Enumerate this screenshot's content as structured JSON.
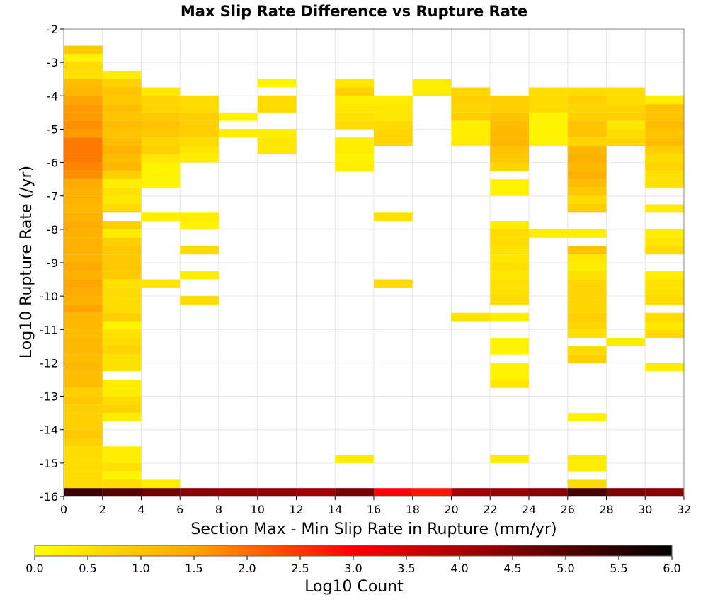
{
  "chart_data": {
    "type": "heatmap",
    "title": "Max Slip Rate Difference vs Rupture Rate",
    "xlabel": "Section Max - Min Slip Rate in Rupture (mm/yr)",
    "ylabel": "Log10 Rupture Rate (/yr)",
    "xlim": [
      0,
      32
    ],
    "ylim": [
      -16,
      -2
    ],
    "x_ticks": [
      "0",
      "2",
      "4",
      "6",
      "8",
      "10",
      "12",
      "14",
      "16",
      "18",
      "20",
      "22",
      "24",
      "26",
      "28",
      "30",
      "32"
    ],
    "y_ticks": [
      "-2",
      "-3",
      "-4",
      "-5",
      "-6",
      "-7",
      "-8",
      "-9",
      "-10",
      "-11",
      "-12",
      "-13",
      "-14",
      "-15",
      "-16"
    ],
    "grid": true,
    "x_bin_width": 2,
    "y_bin_height": 0.25,
    "colorbar": {
      "label": "Log10 Count",
      "min": 0.0,
      "max": 6.0,
      "ticks": [
        "0.0",
        "0.5",
        "1.0",
        "1.5",
        "2.0",
        "2.5",
        "3.0",
        "3.5",
        "4.0",
        "4.5",
        "5.0",
        "5.5",
        "6.0"
      ]
    },
    "cells": [
      [
        0,
        -2.75,
        0.9
      ],
      [
        0,
        -3,
        0.2
      ],
      [
        0,
        -3.25,
        0.6
      ],
      [
        0,
        -3.5,
        0.5
      ],
      [
        0,
        -3.75,
        1.1
      ],
      [
        0,
        -4,
        1.2
      ],
      [
        0,
        -4.25,
        1.5
      ],
      [
        0,
        -4.5,
        1.6
      ],
      [
        0,
        -4.75,
        1.6
      ],
      [
        0,
        -5,
        1.7
      ],
      [
        0,
        -5.25,
        1.6
      ],
      [
        0,
        -5.5,
        1.9
      ],
      [
        0,
        -5.75,
        1.9
      ],
      [
        0,
        -6,
        1.9
      ],
      [
        0,
        -6.25,
        1.8
      ],
      [
        0,
        -6.5,
        1.7
      ],
      [
        0,
        -6.75,
        1.4
      ],
      [
        0,
        -7,
        1.3
      ],
      [
        0,
        -7.25,
        1.3
      ],
      [
        0,
        -7.5,
        1.2
      ],
      [
        0,
        -7.75,
        1.3
      ],
      [
        0,
        -8,
        1.4
      ],
      [
        0,
        -8.25,
        1.3
      ],
      [
        0,
        -8.5,
        1.3
      ],
      [
        0,
        -8.75,
        1.3
      ],
      [
        0,
        -9,
        1.3
      ],
      [
        0,
        -9.25,
        1.4
      ],
      [
        0,
        -9.5,
        1.3
      ],
      [
        0,
        -9.75,
        1.5
      ],
      [
        0,
        -10,
        1.4
      ],
      [
        0,
        -10.25,
        1.3
      ],
      [
        0,
        -10.5,
        1.5
      ],
      [
        0,
        -10.75,
        1.2
      ],
      [
        0,
        -11,
        1.2
      ],
      [
        0,
        -11.25,
        1.1
      ],
      [
        0,
        -11.5,
        1.2
      ],
      [
        0,
        -11.75,
        1.2
      ],
      [
        0,
        -12,
        1.1
      ],
      [
        0,
        -12.25,
        1.2
      ],
      [
        0,
        -12.5,
        1.1
      ],
      [
        0,
        -12.75,
        1.1
      ],
      [
        0,
        -13,
        0.8
      ],
      [
        0,
        -13.25,
        0.9
      ],
      [
        0,
        -13.5,
        0.8
      ],
      [
        0,
        -13.75,
        0.8
      ],
      [
        0,
        -14,
        0.8
      ],
      [
        0,
        -14.25,
        0.9
      ],
      [
        0,
        -14.5,
        0.8
      ],
      [
        0,
        -14.75,
        0.6
      ],
      [
        0,
        -15,
        0.6
      ],
      [
        0,
        -15.25,
        0.6
      ],
      [
        0,
        -15.5,
        0.6
      ],
      [
        0,
        -15.75,
        0.6
      ],
      [
        0,
        -16,
        5.3
      ],
      [
        2,
        -3.5,
        0.3
      ],
      [
        2,
        -3.75,
        0.8
      ],
      [
        2,
        -4,
        1.0
      ],
      [
        2,
        -4.25,
        0.9
      ],
      [
        2,
        -4.5,
        1.1
      ],
      [
        2,
        -4.75,
        1.0
      ],
      [
        2,
        -5,
        1.1
      ],
      [
        2,
        -5.25,
        1.0
      ],
      [
        2,
        -5.5,
        1.1
      ],
      [
        2,
        -5.75,
        1.3
      ],
      [
        2,
        -6,
        1.1
      ],
      [
        2,
        -6.25,
        1.2
      ],
      [
        2,
        -6.5,
        0.8
      ],
      [
        2,
        -6.75,
        0.3
      ],
      [
        2,
        -7,
        0.5
      ],
      [
        2,
        -7.25,
        0.4
      ],
      [
        2,
        -7.5,
        0.6
      ],
      [
        2,
        -8,
        0.8
      ],
      [
        2,
        -8.25,
        0.3
      ],
      [
        2,
        -8.5,
        0.8
      ],
      [
        2,
        -8.75,
        0.9
      ],
      [
        2,
        -9,
        0.9
      ],
      [
        2,
        -9.25,
        0.9
      ],
      [
        2,
        -9.5,
        0.9
      ],
      [
        2,
        -9.75,
        0.5
      ],
      [
        2,
        -10,
        0.6
      ],
      [
        2,
        -10.25,
        0.6
      ],
      [
        2,
        -10.5,
        0.6
      ],
      [
        2,
        -10.75,
        0.8
      ],
      [
        2,
        -11,
        0.2
      ],
      [
        2,
        -11.25,
        0.5
      ],
      [
        2,
        -11.5,
        0.6
      ],
      [
        2,
        -11.75,
        0.7
      ],
      [
        2,
        -12,
        0.5
      ],
      [
        2,
        -12.25,
        0.5
      ],
      [
        2,
        -12.75,
        0.3
      ],
      [
        2,
        -13,
        0.3
      ],
      [
        2,
        -13.25,
        0.6
      ],
      [
        2,
        -13.5,
        0.7
      ],
      [
        2,
        -13.75,
        0.3
      ],
      [
        2,
        -14.75,
        0.3
      ],
      [
        2,
        -15,
        0.3
      ],
      [
        2,
        -15.25,
        0.5
      ],
      [
        2,
        -15.5,
        0.2
      ],
      [
        2,
        -15.75,
        0.6
      ],
      [
        2,
        -16,
        5.0
      ],
      [
        4,
        -4,
        0.4
      ],
      [
        4,
        -4.25,
        0.7
      ],
      [
        4,
        -4.5,
        0.7
      ],
      [
        4,
        -4.75,
        0.9
      ],
      [
        4,
        -5,
        1.0
      ],
      [
        4,
        -5.25,
        0.9
      ],
      [
        4,
        -5.5,
        0.7
      ],
      [
        4,
        -5.75,
        0.8
      ],
      [
        4,
        -6,
        0.4
      ],
      [
        4,
        -6.25,
        0.2
      ],
      [
        4,
        -6.5,
        0.2
      ],
      [
        4,
        -6.75,
        0.2
      ],
      [
        4,
        -7.75,
        0.3
      ],
      [
        4,
        -9.75,
        0.4
      ],
      [
        4,
        -15.75,
        0.3
      ],
      [
        4,
        -16,
        4.7
      ],
      [
        6,
        -4.25,
        0.6
      ],
      [
        6,
        -4.5,
        0.6
      ],
      [
        6,
        -4.75,
        0.8
      ],
      [
        6,
        -5,
        0.8
      ],
      [
        6,
        -5.25,
        0.8
      ],
      [
        6,
        -5.5,
        0.6
      ],
      [
        6,
        -5.75,
        0.4
      ],
      [
        6,
        -6,
        0.3
      ],
      [
        6,
        -7.75,
        0.3
      ],
      [
        6,
        -8,
        0.2
      ],
      [
        6,
        -8.75,
        0.6
      ],
      [
        6,
        -9.5,
        0.3
      ],
      [
        6,
        -10.25,
        0.6
      ],
      [
        6,
        -16,
        4.4
      ],
      [
        8,
        -4.75,
        0.2
      ],
      [
        8,
        -5.25,
        0.3
      ],
      [
        8,
        -16,
        4.3
      ],
      [
        10,
        -3.75,
        0.2
      ],
      [
        10,
        -4.25,
        0.6
      ],
      [
        10,
        -4.5,
        0.6
      ],
      [
        10,
        -5.25,
        0.3
      ],
      [
        10,
        -5.5,
        0.4
      ],
      [
        10,
        -5.75,
        0.4
      ],
      [
        10,
        -16,
        4.3
      ],
      [
        12,
        -16,
        4.1
      ],
      [
        14,
        -3.75,
        0.4
      ],
      [
        14,
        -4,
        0.8
      ],
      [
        14,
        -4.25,
        0.3
      ],
      [
        14,
        -4.5,
        0.4
      ],
      [
        14,
        -4.75,
        0.5
      ],
      [
        14,
        -5,
        0.6
      ],
      [
        14,
        -5.5,
        0.3
      ],
      [
        14,
        -5.75,
        0.3
      ],
      [
        14,
        -6,
        0.2
      ],
      [
        14,
        -6.25,
        0.3
      ],
      [
        14,
        -15,
        0.3
      ],
      [
        14,
        -16,
        4.6
      ],
      [
        16,
        -4.25,
        0.3
      ],
      [
        16,
        -4.5,
        0.4
      ],
      [
        16,
        -4.75,
        0.4
      ],
      [
        16,
        -5,
        0.6
      ],
      [
        16,
        -5.25,
        0.7
      ],
      [
        16,
        -5.5,
        0.7
      ],
      [
        16,
        -7.75,
        0.5
      ],
      [
        16,
        -9.75,
        0.6
      ],
      [
        16,
        -16,
        3.0
      ],
      [
        18,
        -3.75,
        0.3
      ],
      [
        18,
        -4,
        0.3
      ],
      [
        18,
        -16,
        2.8
      ],
      [
        20,
        -4,
        0.7
      ],
      [
        20,
        -4.25,
        0.8
      ],
      [
        20,
        -4.5,
        0.7
      ],
      [
        20,
        -4.75,
        0.8
      ],
      [
        20,
        -5,
        0.3
      ],
      [
        20,
        -5.25,
        0.3
      ],
      [
        20,
        -5.5,
        0.3
      ],
      [
        20,
        -10.75,
        0.5
      ],
      [
        20,
        -16,
        4.1
      ],
      [
        22,
        -4.25,
        0.8
      ],
      [
        22,
        -4.5,
        0.8
      ],
      [
        22,
        -4.75,
        1.0
      ],
      [
        22,
        -5,
        1.1
      ],
      [
        22,
        -5.25,
        1.2
      ],
      [
        22,
        -5.5,
        1.2
      ],
      [
        22,
        -5.75,
        1.0
      ],
      [
        22,
        -6,
        0.9
      ],
      [
        22,
        -6.25,
        0.7
      ],
      [
        22,
        -6.75,
        0.2
      ],
      [
        22,
        -7,
        0.2
      ],
      [
        22,
        -8,
        0.3
      ],
      [
        22,
        -8.25,
        0.6
      ],
      [
        22,
        -8.5,
        0.6
      ],
      [
        22,
        -8.75,
        0.5
      ],
      [
        22,
        -9,
        0.4
      ],
      [
        22,
        -9.25,
        0.5
      ],
      [
        22,
        -9.5,
        0.4
      ],
      [
        22,
        -9.75,
        0.5
      ],
      [
        22,
        -10,
        0.5
      ],
      [
        22,
        -10.25,
        0.6
      ],
      [
        22,
        -10.75,
        0.3
      ],
      [
        22,
        -11.5,
        0.2
      ],
      [
        22,
        -11.75,
        0.2
      ],
      [
        22,
        -12.25,
        0.2
      ],
      [
        22,
        -12.5,
        0.2
      ],
      [
        22,
        -12.75,
        0.4
      ],
      [
        22,
        -15,
        0.3
      ],
      [
        22,
        -16,
        4.2
      ],
      [
        24,
        -4,
        0.6
      ],
      [
        24,
        -4.25,
        0.6
      ],
      [
        24,
        -4.5,
        0.6
      ],
      [
        24,
        -4.75,
        0.2
      ],
      [
        24,
        -5,
        0.2
      ],
      [
        24,
        -5.25,
        0.2
      ],
      [
        24,
        -5.5,
        0.2
      ],
      [
        24,
        -8.25,
        0.3
      ],
      [
        24,
        -16,
        4.4
      ],
      [
        26,
        -4,
        0.6
      ],
      [
        26,
        -4.25,
        0.8
      ],
      [
        26,
        -4.5,
        0.7
      ],
      [
        26,
        -4.75,
        0.8
      ],
      [
        26,
        -5,
        1.0
      ],
      [
        26,
        -5.25,
        1.0
      ],
      [
        26,
        -5.5,
        0.7
      ],
      [
        26,
        -5.75,
        1.2
      ],
      [
        26,
        -6,
        1.3
      ],
      [
        26,
        -6.25,
        1.2
      ],
      [
        26,
        -6.5,
        1.3
      ],
      [
        26,
        -6.75,
        1.1
      ],
      [
        26,
        -7,
        0.9
      ],
      [
        26,
        -7.25,
        0.6
      ],
      [
        26,
        -7.5,
        0.8
      ],
      [
        26,
        -8.25,
        0.3
      ],
      [
        26,
        -8.75,
        1.0
      ],
      [
        26,
        -9,
        0.4
      ],
      [
        26,
        -9.25,
        0.3
      ],
      [
        26,
        -9.5,
        0.5
      ],
      [
        26,
        -9.75,
        0.7
      ],
      [
        26,
        -10,
        0.7
      ],
      [
        26,
        -10.25,
        0.7
      ],
      [
        26,
        -10.5,
        0.7
      ],
      [
        26,
        -10.75,
        0.8
      ],
      [
        26,
        -11,
        0.7
      ],
      [
        26,
        -11.25,
        0.5
      ],
      [
        26,
        -11.75,
        0.6
      ],
      [
        26,
        -12,
        0.8
      ],
      [
        26,
        -13.75,
        0.2
      ],
      [
        26,
        -15,
        0.3
      ],
      [
        26,
        -15.25,
        0.3
      ],
      [
        26,
        -15.75,
        0.6
      ],
      [
        26,
        -16,
        5.2
      ],
      [
        28,
        -4,
        0.6
      ],
      [
        28,
        -4.25,
        0.6
      ],
      [
        28,
        -4.5,
        0.7
      ],
      [
        28,
        -4.75,
        0.8
      ],
      [
        28,
        -5,
        0.4
      ],
      [
        28,
        -5.25,
        0.6
      ],
      [
        28,
        -5.5,
        0.7
      ],
      [
        28,
        -11.5,
        0.3
      ],
      [
        28,
        -16,
        4.5
      ],
      [
        30,
        -4.25,
        0.3
      ],
      [
        30,
        -4.5,
        1.0
      ],
      [
        30,
        -4.75,
        1.0
      ],
      [
        30,
        -5,
        1.1
      ],
      [
        30,
        -5.25,
        1.0
      ],
      [
        30,
        -5.5,
        1.1
      ],
      [
        30,
        -5.75,
        0.8
      ],
      [
        30,
        -6,
        0.6
      ],
      [
        30,
        -6.25,
        0.7
      ],
      [
        30,
        -6.5,
        0.5
      ],
      [
        30,
        -6.75,
        0.5
      ],
      [
        30,
        -7.5,
        0.3
      ],
      [
        30,
        -8.25,
        0.3
      ],
      [
        30,
        -8.5,
        0.4
      ],
      [
        30,
        -8.75,
        0.6
      ],
      [
        30,
        -9.5,
        0.3
      ],
      [
        30,
        -9.75,
        0.5
      ],
      [
        30,
        -10,
        0.5
      ],
      [
        30,
        -10.25,
        0.6
      ],
      [
        30,
        -10.75,
        0.6
      ],
      [
        30,
        -11,
        0.4
      ],
      [
        30,
        -11.25,
        0.6
      ],
      [
        30,
        -12.25,
        0.3
      ],
      [
        30,
        -16,
        4.4
      ]
    ]
  }
}
